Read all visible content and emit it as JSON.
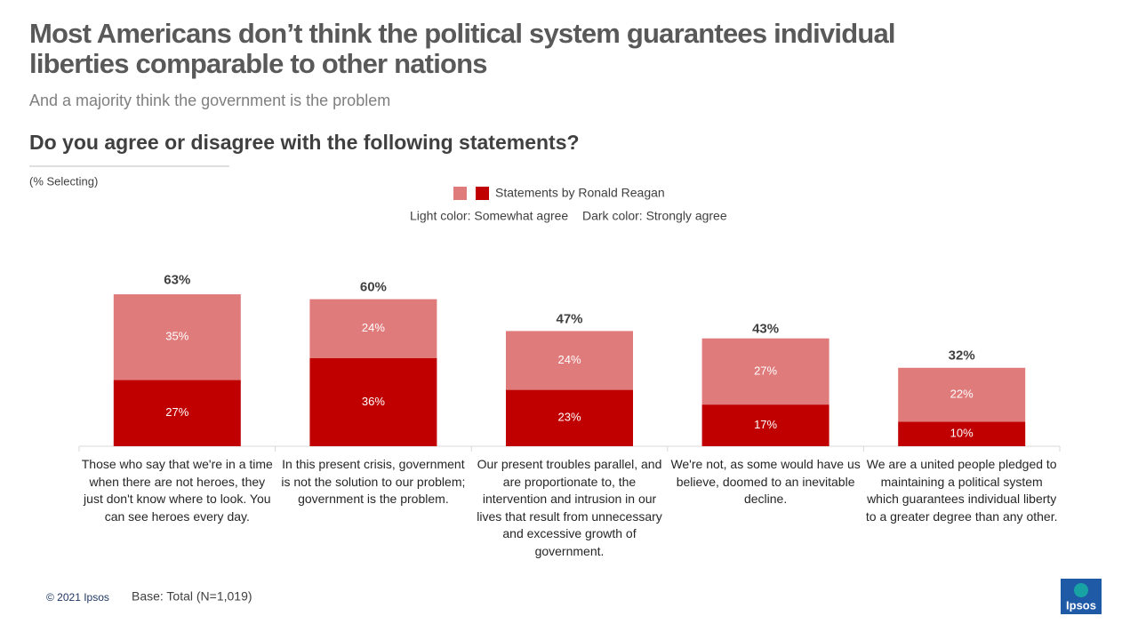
{
  "title": "Most Americans don’t think the political system guarantees individual liberties comparable to other nations",
  "subtitle": "And a majority think the government  is the problem",
  "question": "Do you agree or disagree with the following statements?",
  "note": "(% Selecting)",
  "footer": {
    "copyright": "© 2021 Ipsos",
    "base": "Base: Total (N=1,019)",
    "logo": "Ipsos"
  },
  "chart_data": {
    "type": "stacked-bar",
    "legend_title": "Statements by Ronald Reagan",
    "legend_notes": [
      "Light color: Somewhat agree",
      "Dark color: Strongly agree"
    ],
    "categories": [
      "Those who say that we're in a time when there are not heroes, they just don't know where to look. You can see heroes every day.",
      "In this present crisis, government is not the solution to our problem; government is the problem.",
      "Our present troubles parallel, and are proportionate to, the intervention and intrusion in our lives that result from unnecessary and excessive growth of government.",
      "We're not, as some would have us believe, doomed to an inevitable decline.",
      "We are a united people pledged to maintaining a political system which guarantees individual liberty to a greater degree than any other."
    ],
    "series": [
      {
        "color": "#c00000",
        "values": [
          27,
          36,
          23,
          17,
          10
        ],
        "value_labels": [
          "27%",
          "36%",
          "23%",
          "17%",
          "10%"
        ]
      },
      {
        "color": "#e07b7b",
        "values": [
          35,
          24,
          24,
          27,
          22
        ],
        "value_labels": [
          "35%",
          "24%",
          "24%",
          "27%",
          "22%"
        ]
      }
    ],
    "totals": {
      "values": [
        63,
        60,
        47,
        43,
        32
      ],
      "value_labels": [
        "63%",
        "60%",
        "47%",
        "43%",
        "32%"
      ]
    },
    "ylim": [
      0,
      70
    ]
  }
}
